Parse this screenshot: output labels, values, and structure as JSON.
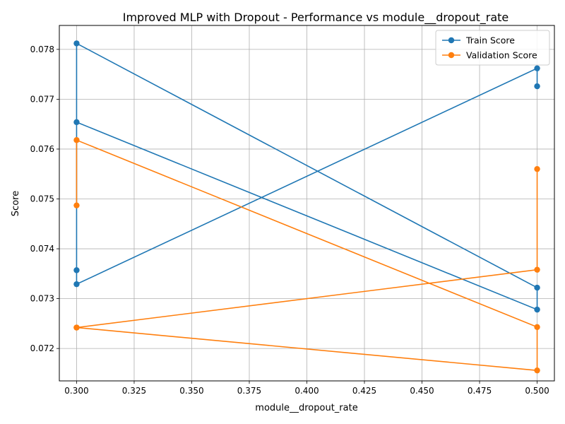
{
  "chart_data": {
    "type": "line",
    "title": "Improved MLP with Dropout - Performance vs module__dropout_rate",
    "xlabel": "module__dropout_rate",
    "ylabel": "Score",
    "xlim": [
      0.2925,
      0.5075
    ],
    "ylim": [
      0.07135,
      0.07848
    ],
    "x_ticks": [
      "0.300",
      "0.325",
      "0.350",
      "0.375",
      "0.400",
      "0.425",
      "0.450",
      "0.475",
      "0.500"
    ],
    "y_ticks": [
      "0.072",
      "0.073",
      "0.074",
      "0.075",
      "0.076",
      "0.077",
      "0.078"
    ],
    "grid": true,
    "legend_position": "top-right",
    "series": [
      {
        "name": "Train Score",
        "color": "#1f77b4",
        "x": [
          0.3,
          0.3,
          0.5,
          0.5,
          0.3,
          0.3,
          0.5,
          0.5
        ],
        "y": [
          0.07357,
          0.07812,
          0.07322,
          0.07278,
          0.07654,
          0.07329,
          0.07762,
          0.07726
        ]
      },
      {
        "name": "Validation Score",
        "color": "#ff7f0e",
        "x": [
          0.3,
          0.3,
          0.5,
          0.5,
          0.3,
          0.3,
          0.5,
          0.5
        ],
        "y": [
          0.07487,
          0.07618,
          0.07243,
          0.07156,
          0.07242,
          0.07242,
          0.07358,
          0.0756
        ]
      }
    ]
  }
}
